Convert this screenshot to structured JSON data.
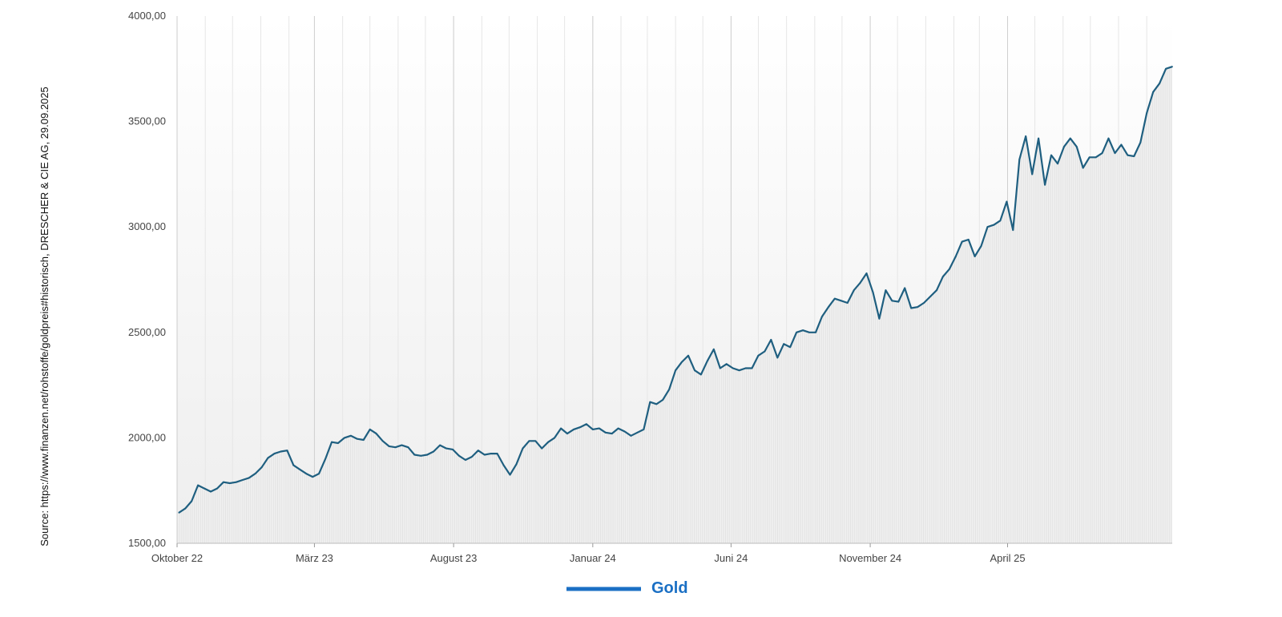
{
  "source_text": "Source: https://www.finanzen.net/rohstoffe/goldpreis#historisch, DRESCHER & CIE AG, 29.09.2025",
  "colors": {
    "line": "#1f5f80",
    "legend": "#1a6fc4",
    "area": "#e3e3e3",
    "grid": "#d0d0d0"
  },
  "chart_data": {
    "type": "line",
    "ylim": [
      1500,
      4000
    ],
    "y_ticks": [
      {
        "value": 1500,
        "label": "1500,00"
      },
      {
        "value": 2000,
        "label": "2000,00"
      },
      {
        "value": 2500,
        "label": "2500,00"
      },
      {
        "value": 3000,
        "label": "3000,00"
      },
      {
        "value": 3500,
        "label": "3500,00"
      },
      {
        "value": 4000,
        "label": "4000,00"
      }
    ],
    "x_range": [
      "2022-10-01",
      "2025-09-29"
    ],
    "x_ticks": [
      {
        "date": "2022-10-01",
        "label": "Oktober 22"
      },
      {
        "date": "2023-03-01",
        "label": "März 23"
      },
      {
        "date": "2023-08-01",
        "label": "August 23"
      },
      {
        "date": "2024-01-01",
        "label": "Januar 24"
      },
      {
        "date": "2024-06-01",
        "label": "Juni 24"
      },
      {
        "date": "2024-11-01",
        "label": "November 24"
      },
      {
        "date": "2025-04-01",
        "label": "April 25"
      }
    ],
    "grid": true,
    "series": [
      {
        "name": "Gold",
        "points": [
          [
            "2022-10-03",
            1645
          ],
          [
            "2022-10-10",
            1665
          ],
          [
            "2022-10-17",
            1700
          ],
          [
            "2022-10-24",
            1775
          ],
          [
            "2022-10-31",
            1760
          ],
          [
            "2022-11-07",
            1745
          ],
          [
            "2022-11-14",
            1760
          ],
          [
            "2022-11-21",
            1790
          ],
          [
            "2022-11-28",
            1785
          ],
          [
            "2022-12-05",
            1790
          ],
          [
            "2022-12-12",
            1800
          ],
          [
            "2022-12-19",
            1810
          ],
          [
            "2022-12-26",
            1830
          ],
          [
            "2023-01-02",
            1860
          ],
          [
            "2023-01-09",
            1905
          ],
          [
            "2023-01-16",
            1925
          ],
          [
            "2023-01-23",
            1935
          ],
          [
            "2023-01-30",
            1940
          ],
          [
            "2023-02-06",
            1870
          ],
          [
            "2023-02-13",
            1850
          ],
          [
            "2023-02-20",
            1830
          ],
          [
            "2023-02-27",
            1815
          ],
          [
            "2023-03-06",
            1830
          ],
          [
            "2023-03-13",
            1900
          ],
          [
            "2023-03-20",
            1980
          ],
          [
            "2023-03-27",
            1975
          ],
          [
            "2023-04-03",
            2000
          ],
          [
            "2023-04-10",
            2010
          ],
          [
            "2023-04-17",
            1995
          ],
          [
            "2023-04-24",
            1990
          ],
          [
            "2023-05-01",
            2040
          ],
          [
            "2023-05-08",
            2020
          ],
          [
            "2023-05-15",
            1985
          ],
          [
            "2023-05-22",
            1960
          ],
          [
            "2023-05-29",
            1955
          ],
          [
            "2023-06-05",
            1965
          ],
          [
            "2023-06-12",
            1955
          ],
          [
            "2023-06-19",
            1920
          ],
          [
            "2023-06-26",
            1915
          ],
          [
            "2023-07-03",
            1920
          ],
          [
            "2023-07-10",
            1935
          ],
          [
            "2023-07-17",
            1965
          ],
          [
            "2023-07-24",
            1950
          ],
          [
            "2023-07-31",
            1945
          ],
          [
            "2023-08-07",
            1915
          ],
          [
            "2023-08-14",
            1895
          ],
          [
            "2023-08-21",
            1910
          ],
          [
            "2023-08-28",
            1940
          ],
          [
            "2023-09-04",
            1920
          ],
          [
            "2023-09-11",
            1925
          ],
          [
            "2023-09-18",
            1925
          ],
          [
            "2023-09-25",
            1870
          ],
          [
            "2023-10-02",
            1825
          ],
          [
            "2023-10-09",
            1875
          ],
          [
            "2023-10-16",
            1950
          ],
          [
            "2023-10-23",
            1985
          ],
          [
            "2023-10-30",
            1985
          ],
          [
            "2023-11-06",
            1950
          ],
          [
            "2023-11-13",
            1980
          ],
          [
            "2023-11-20",
            2000
          ],
          [
            "2023-11-27",
            2045
          ],
          [
            "2023-12-04",
            2020
          ],
          [
            "2023-12-11",
            2040
          ],
          [
            "2023-12-18",
            2050
          ],
          [
            "2023-12-25",
            2065
          ],
          [
            "2024-01-01",
            2040
          ],
          [
            "2024-01-08",
            2045
          ],
          [
            "2024-01-15",
            2025
          ],
          [
            "2024-01-22",
            2020
          ],
          [
            "2024-01-29",
            2045
          ],
          [
            "2024-02-05",
            2030
          ],
          [
            "2024-02-12",
            2010
          ],
          [
            "2024-02-19",
            2025
          ],
          [
            "2024-02-26",
            2040
          ],
          [
            "2024-03-04",
            2170
          ],
          [
            "2024-03-11",
            2160
          ],
          [
            "2024-03-18",
            2180
          ],
          [
            "2024-03-25",
            2230
          ],
          [
            "2024-04-01",
            2320
          ],
          [
            "2024-04-08",
            2360
          ],
          [
            "2024-04-15",
            2390
          ],
          [
            "2024-04-22",
            2320
          ],
          [
            "2024-04-29",
            2300
          ],
          [
            "2024-05-06",
            2365
          ],
          [
            "2024-05-13",
            2420
          ],
          [
            "2024-05-20",
            2330
          ],
          [
            "2024-05-27",
            2350
          ],
          [
            "2024-06-03",
            2330
          ],
          [
            "2024-06-10",
            2320
          ],
          [
            "2024-06-17",
            2330
          ],
          [
            "2024-06-24",
            2330
          ],
          [
            "2024-07-01",
            2390
          ],
          [
            "2024-07-08",
            2410
          ],
          [
            "2024-07-15",
            2465
          ],
          [
            "2024-07-22",
            2380
          ],
          [
            "2024-07-29",
            2445
          ],
          [
            "2024-08-05",
            2430
          ],
          [
            "2024-08-12",
            2500
          ],
          [
            "2024-08-19",
            2510
          ],
          [
            "2024-08-26",
            2500
          ],
          [
            "2024-09-02",
            2500
          ],
          [
            "2024-09-09",
            2575
          ],
          [
            "2024-09-16",
            2620
          ],
          [
            "2024-09-23",
            2660
          ],
          [
            "2024-09-30",
            2650
          ],
          [
            "2024-10-07",
            2640
          ],
          [
            "2024-10-14",
            2700
          ],
          [
            "2024-10-21",
            2735
          ],
          [
            "2024-10-28",
            2780
          ],
          [
            "2024-11-04",
            2690
          ],
          [
            "2024-11-11",
            2565
          ],
          [
            "2024-11-18",
            2700
          ],
          [
            "2024-11-25",
            2650
          ],
          [
            "2024-12-02",
            2645
          ],
          [
            "2024-12-09",
            2710
          ],
          [
            "2024-12-16",
            2615
          ],
          [
            "2024-12-23",
            2620
          ],
          [
            "2024-12-30",
            2640
          ],
          [
            "2025-01-06",
            2670
          ],
          [
            "2025-01-13",
            2700
          ],
          [
            "2025-01-20",
            2765
          ],
          [
            "2025-01-27",
            2800
          ],
          [
            "2025-02-03",
            2860
          ],
          [
            "2025-02-10",
            2930
          ],
          [
            "2025-02-17",
            2940
          ],
          [
            "2025-02-24",
            2860
          ],
          [
            "2025-03-03",
            2910
          ],
          [
            "2025-03-10",
            3000
          ],
          [
            "2025-03-17",
            3010
          ],
          [
            "2025-03-24",
            3030
          ],
          [
            "2025-03-31",
            3120
          ],
          [
            "2025-04-07",
            2985
          ],
          [
            "2025-04-14",
            3320
          ],
          [
            "2025-04-21",
            3430
          ],
          [
            "2025-04-28",
            3250
          ],
          [
            "2025-05-05",
            3420
          ],
          [
            "2025-05-12",
            3200
          ],
          [
            "2025-05-19",
            3340
          ],
          [
            "2025-05-26",
            3300
          ],
          [
            "2025-06-02",
            3380
          ],
          [
            "2025-06-09",
            3420
          ],
          [
            "2025-06-16",
            3380
          ],
          [
            "2025-06-23",
            3280
          ],
          [
            "2025-06-30",
            3330
          ],
          [
            "2025-07-07",
            3330
          ],
          [
            "2025-07-14",
            3350
          ],
          [
            "2025-07-21",
            3420
          ],
          [
            "2025-07-28",
            3350
          ],
          [
            "2025-08-04",
            3390
          ],
          [
            "2025-08-11",
            3340
          ],
          [
            "2025-08-18",
            3335
          ],
          [
            "2025-08-25",
            3400
          ],
          [
            "2025-09-01",
            3540
          ],
          [
            "2025-09-08",
            3640
          ],
          [
            "2025-09-15",
            3680
          ],
          [
            "2025-09-22",
            3750
          ],
          [
            "2025-09-29",
            3760
          ]
        ]
      }
    ]
  }
}
